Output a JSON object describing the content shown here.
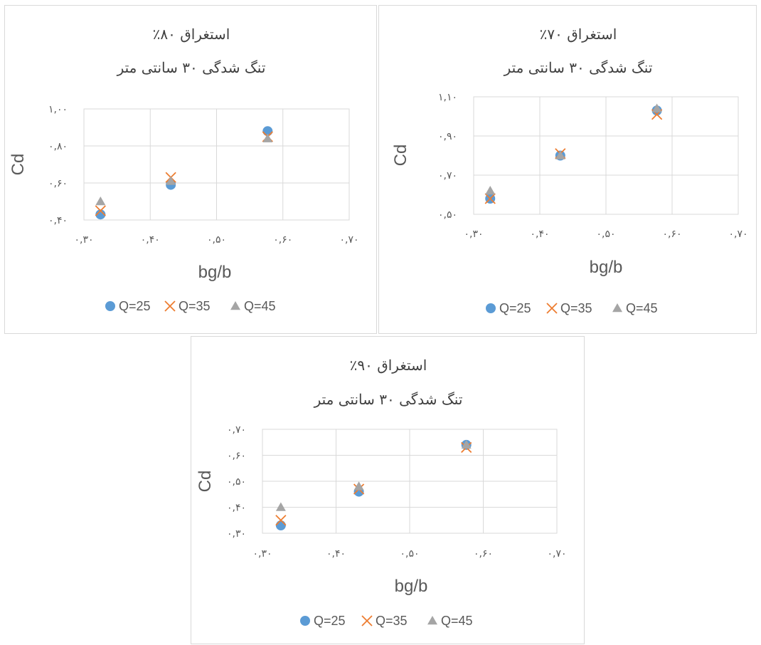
{
  "colors": {
    "q25": "#5b9bd5",
    "q35": "#ed7d31",
    "q45": "#a5a5a5"
  },
  "chart_data": [
    {
      "id": "chart-80",
      "type": "scatter",
      "title": "استغراق ۸۰٪",
      "subtitle": "تنگ شدگی ۳۰ سانتی متر",
      "xlabel": "bg/b",
      "ylabel": "Cd",
      "xlim": [
        0.3,
        0.7
      ],
      "ylim": [
        0.4,
        1.0
      ],
      "xticks": [
        0.3,
        0.4,
        0.5,
        0.6,
        0.7
      ],
      "xtick_labels": [
        "۰,۳۰",
        "۰,۴۰",
        "۰,۵۰",
        "۰,۶۰",
        "۰,۷۰"
      ],
      "yticks": [
        0.4,
        0.6,
        0.8,
        1.0
      ],
      "ytick_labels": [
        "۰,۴۰",
        "۰,۶۰",
        "۰,۸۰",
        "۱,۰۰"
      ],
      "grid": true,
      "legend_position": "bottom",
      "series": [
        {
          "name": "Q=25",
          "marker": "circle",
          "x": [
            0.325,
            0.431,
            0.577
          ],
          "y": [
            0.43,
            0.59,
            0.88
          ]
        },
        {
          "name": "Q=35",
          "marker": "x",
          "x": [
            0.325,
            0.431,
            0.577
          ],
          "y": [
            0.45,
            0.63,
            0.85
          ]
        },
        {
          "name": "Q=45",
          "marker": "triangle",
          "x": [
            0.325,
            0.431,
            0.577
          ],
          "y": [
            0.5,
            0.61,
            0.84
          ]
        }
      ]
    },
    {
      "id": "chart-70",
      "type": "scatter",
      "title": "استغراق ۷۰٪",
      "subtitle": "تنگ شدگی ۳۰ سانتی متر",
      "xlabel": "bg/b",
      "ylabel": "Cd",
      "xlim": [
        0.3,
        0.7
      ],
      "ylim": [
        0.5,
        1.1
      ],
      "xticks": [
        0.3,
        0.4,
        0.5,
        0.6,
        0.7
      ],
      "xtick_labels": [
        "۰,۳۰",
        "۰,۴۰",
        "۰,۵۰",
        "۰,۶۰",
        "۰,۷۰"
      ],
      "yticks": [
        0.5,
        0.7,
        0.9,
        1.1
      ],
      "ytick_labels": [
        "۰,۵۰",
        "۰,۷۰",
        "۰,۹۰",
        "۱,۱۰"
      ],
      "grid": true,
      "legend_position": "bottom",
      "series": [
        {
          "name": "Q=25",
          "marker": "circle",
          "x": [
            0.325,
            0.431,
            0.577
          ],
          "y": [
            0.58,
            0.8,
            1.03
          ]
        },
        {
          "name": "Q=35",
          "marker": "x",
          "x": [
            0.325,
            0.431,
            0.577
          ],
          "y": [
            0.58,
            0.81,
            1.01
          ]
        },
        {
          "name": "Q=45",
          "marker": "triangle",
          "x": [
            0.325,
            0.431,
            0.577
          ],
          "y": [
            0.62,
            0.8,
            1.04
          ]
        }
      ]
    },
    {
      "id": "chart-90",
      "type": "scatter",
      "title": "استغراق ۹۰٪",
      "subtitle": "تنگ شدگی ۳۰ سانتی متر",
      "xlabel": "bg/b",
      "ylabel": "Cd",
      "xlim": [
        0.3,
        0.7
      ],
      "ylim": [
        0.3,
        0.7
      ],
      "xticks": [
        0.3,
        0.4,
        0.5,
        0.6,
        0.7
      ],
      "xtick_labels": [
        "۰,۳۰",
        "۰,۴۰",
        "۰,۵۰",
        "۰,۶۰",
        "۰,۷۰"
      ],
      "yticks": [
        0.3,
        0.4,
        0.5,
        0.6,
        0.7
      ],
      "ytick_labels": [
        "۰,۳۰",
        "۰,۴۰",
        "۰,۵۰",
        "۰,۶۰",
        "۰,۷۰"
      ],
      "grid": true,
      "legend_position": "bottom",
      "series": [
        {
          "name": "Q=25",
          "marker": "circle",
          "x": [
            0.325,
            0.431,
            0.577
          ],
          "y": [
            0.33,
            0.46,
            0.64
          ]
        },
        {
          "name": "Q=35",
          "marker": "x",
          "x": [
            0.325,
            0.431,
            0.577
          ],
          "y": [
            0.35,
            0.47,
            0.63
          ]
        },
        {
          "name": "Q=45",
          "marker": "triangle",
          "x": [
            0.325,
            0.431,
            0.577
          ],
          "y": [
            0.4,
            0.48,
            0.64
          ]
        }
      ]
    }
  ]
}
